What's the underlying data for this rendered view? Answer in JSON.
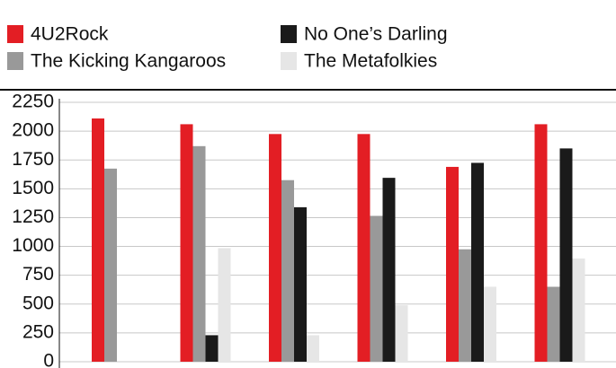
{
  "chart_data": {
    "type": "bar",
    "series": [
      {
        "name": "4U2Rock",
        "color": "#e31e24",
        "values": [
          2110,
          2060,
          1975,
          1975,
          1690,
          2060
        ]
      },
      {
        "name": "The Kicking Kangaroos",
        "color": "#999999",
        "values": [
          1675,
          1870,
          1575,
          1265,
          975,
          650
        ]
      },
      {
        "name": "No One’s Darling",
        "color": "#1a1a1a",
        "values": [
          null,
          230,
          1340,
          1595,
          1725,
          1850
        ]
      },
      {
        "name": "The Metafolkies",
        "color": "#e6e6e6",
        "values": [
          null,
          985,
          230,
          490,
          650,
          895
        ]
      }
    ],
    "ylim": [
      0,
      2250
    ],
    "yticks": [
      0,
      250,
      500,
      750,
      1000,
      1250,
      1500,
      1750,
      2000,
      2250
    ],
    "grid": true
  }
}
